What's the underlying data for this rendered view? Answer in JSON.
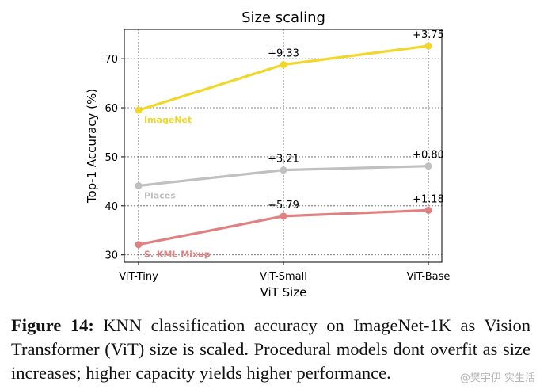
{
  "chart_data": {
    "type": "line",
    "title": "Size scaling",
    "xlabel": "ViT Size",
    "ylabel": "Top-1 Accuracy (%)",
    "categories": [
      "ViT-Tiny",
      "ViT-Small",
      "ViT-Base"
    ],
    "ylim": [
      28.5,
      76
    ],
    "yticks": [
      30,
      40,
      50,
      60,
      70
    ],
    "grid": true,
    "series": [
      {
        "name": "ImageNet",
        "color": "#f0d72a",
        "values": [
          59.5,
          68.8,
          72.6
        ],
        "annotations": [
          "",
          "+9.33",
          "+3.75"
        ]
      },
      {
        "name": "Places",
        "color": "#c0c0c0",
        "values": [
          44.1,
          47.3,
          48.1
        ],
        "annotations": [
          "",
          "+3.21",
          "+0.80"
        ]
      },
      {
        "name": "S. KML Mixup",
        "color": "#e08080",
        "values": [
          32.1,
          37.9,
          39.1
        ],
        "annotations": [
          "",
          "+5.79",
          "+1.18"
        ]
      }
    ]
  },
  "caption": {
    "label": "Figure 14:",
    "text": " KNN classification accuracy on ImageNet-1K as Vision Transformer (ViT) size is scaled. Procedural models dont overfit as size increases; higher capacity yields higher performance."
  },
  "watermark": "@樊宇伊 实生活"
}
